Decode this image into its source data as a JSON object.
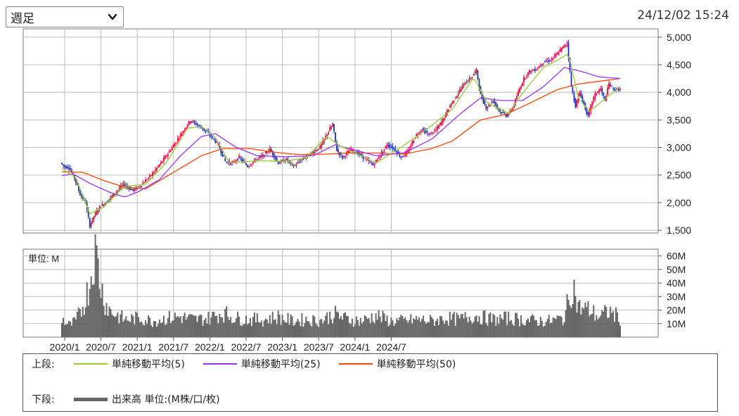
{
  "header": {
    "period_select": {
      "value": "週足"
    },
    "timestamp": "24/12/02 15:24"
  },
  "colors": {
    "candle_up": "#e8003a",
    "candle_down": "#1a2fb5",
    "ma5": "#9acd32",
    "ma25": "#9b30ff",
    "ma50": "#ff4500",
    "volume": "#666666",
    "grid": "#bdbdbd"
  },
  "legend": {
    "upper_label": "上段:",
    "lower_label": "下段:",
    "ma5_label": "単純移動平均(5)",
    "ma25_label": "単純移動平均(25)",
    "ma50_label": "単純移動平均(50)",
    "volume_label": "出来高 単位:(M株/口/枚)"
  },
  "chart_data": [
    {
      "type": "candlestick",
      "x_ticks": [
        "2020/1",
        "2020/7",
        "2021/1",
        "2021/7",
        "2022/1",
        "2022/7",
        "2023/1",
        "2023/7",
        "2024/1",
        "2024/7"
      ],
      "y_ticks": [
        "5,000",
        "4,500",
        "4,000",
        "3,500",
        "3,000",
        "2,500",
        "2,000",
        "1,500"
      ],
      "ylim": [
        1450,
        5150
      ],
      "price_keypoints": [
        [
          0,
          2720
        ],
        [
          3,
          2650
        ],
        [
          6,
          2640
        ],
        [
          10,
          2450
        ],
        [
          14,
          2150
        ],
        [
          18,
          2000
        ],
        [
          21,
          1580
        ],
        [
          24,
          1760
        ],
        [
          28,
          1920
        ],
        [
          33,
          2020
        ],
        [
          38,
          2150
        ],
        [
          45,
          2330
        ],
        [
          52,
          2220
        ],
        [
          58,
          2330
        ],
        [
          65,
          2500
        ],
        [
          72,
          2720
        ],
        [
          80,
          3000
        ],
        [
          88,
          3300
        ],
        [
          93,
          3490
        ],
        [
          98,
          3410
        ],
        [
          103,
          3320
        ],
        [
          108,
          3200
        ],
        [
          113,
          3050
        ],
        [
          118,
          2750
        ],
        [
          123,
          2710
        ],
        [
          128,
          2820
        ],
        [
          134,
          2660
        ],
        [
          140,
          2780
        ],
        [
          145,
          2850
        ],
        [
          150,
          2970
        ],
        [
          156,
          2720
        ],
        [
          162,
          2780
        ],
        [
          167,
          2660
        ],
        [
          172,
          2760
        ],
        [
          177,
          2860
        ],
        [
          181,
          2920
        ],
        [
          186,
          3000
        ],
        [
          191,
          3250
        ],
        [
          195,
          3420
        ],
        [
          198,
          2950
        ],
        [
          202,
          2820
        ],
        [
          208,
          2960
        ],
        [
          214,
          2880
        ],
        [
          219,
          2780
        ],
        [
          224,
          2680
        ],
        [
          229,
          2860
        ],
        [
          234,
          3050
        ],
        [
          239,
          2980
        ],
        [
          244,
          2820
        ],
        [
          249,
          2930
        ],
        [
          254,
          3200
        ],
        [
          259,
          3330
        ],
        [
          264,
          3230
        ],
        [
          269,
          3320
        ],
        [
          274,
          3500
        ],
        [
          279,
          3760
        ],
        [
          284,
          3950
        ],
        [
          289,
          4150
        ],
        [
          294,
          4260
        ],
        [
          298,
          4400
        ],
        [
          301,
          3950
        ],
        [
          305,
          3720
        ],
        [
          310,
          3850
        ],
        [
          315,
          3650
        ],
        [
          320,
          3580
        ],
        [
          324,
          3720
        ],
        [
          328,
          4000
        ],
        [
          332,
          4250
        ],
        [
          336,
          4380
        ],
        [
          341,
          4420
        ],
        [
          346,
          4550
        ],
        [
          351,
          4580
        ],
        [
          356,
          4700
        ],
        [
          360,
          4820
        ],
        [
          363,
          4900
        ],
        [
          366,
          4100
        ],
        [
          369,
          3750
        ],
        [
          372,
          4000
        ],
        [
          375,
          3780
        ],
        [
          378,
          3560
        ],
        [
          381,
          3850
        ],
        [
          384,
          4000
        ],
        [
          387,
          4060
        ],
        [
          390,
          3850
        ],
        [
          393,
          4160
        ],
        [
          396,
          4060
        ],
        [
          400,
          4050
        ]
      ],
      "ma5_keypoints": [
        [
          0,
          2620
        ],
        [
          10,
          2450
        ],
        [
          20,
          1800
        ],
        [
          30,
          1920
        ],
        [
          45,
          2300
        ],
        [
          60,
          2330
        ],
        [
          75,
          2730
        ],
        [
          90,
          3350
        ],
        [
          100,
          3380
        ],
        [
          110,
          3180
        ],
        [
          120,
          2720
        ],
        [
          140,
          2760
        ],
        [
          160,
          2750
        ],
        [
          175,
          2820
        ],
        [
          190,
          3200
        ],
        [
          198,
          3050
        ],
        [
          210,
          2900
        ],
        [
          225,
          2720
        ],
        [
          240,
          2950
        ],
        [
          260,
          3300
        ],
        [
          280,
          3700
        ],
        [
          295,
          4270
        ],
        [
          305,
          3800
        ],
        [
          320,
          3620
        ],
        [
          330,
          3980
        ],
        [
          345,
          4450
        ],
        [
          355,
          4580
        ],
        [
          363,
          4700
        ],
        [
          370,
          3900
        ],
        [
          378,
          3650
        ],
        [
          390,
          3900
        ],
        [
          400,
          4100
        ]
      ],
      "ma25_keypoints": [
        [
          0,
          2490
        ],
        [
          8,
          2520
        ],
        [
          20,
          2350
        ],
        [
          35,
          2180
        ],
        [
          45,
          2100
        ],
        [
          55,
          2200
        ],
        [
          70,
          2420
        ],
        [
          85,
          2850
        ],
        [
          100,
          3200
        ],
        [
          110,
          3250
        ],
        [
          125,
          3000
        ],
        [
          140,
          2850
        ],
        [
          160,
          2830
        ],
        [
          180,
          2850
        ],
        [
          196,
          3050
        ],
        [
          210,
          2950
        ],
        [
          225,
          2850
        ],
        [
          245,
          2900
        ],
        [
          265,
          3150
        ],
        [
          285,
          3600
        ],
        [
          300,
          3900
        ],
        [
          315,
          3850
        ],
        [
          330,
          3850
        ],
        [
          345,
          4100
        ],
        [
          360,
          4450
        ],
        [
          372,
          4380
        ],
        [
          385,
          4280
        ],
        [
          400,
          4250
        ]
      ],
      "ma50_keypoints": [
        [
          0,
          2560
        ],
        [
          15,
          2550
        ],
        [
          30,
          2400
        ],
        [
          45,
          2280
        ],
        [
          60,
          2250
        ],
        [
          80,
          2550
        ],
        [
          100,
          2850
        ],
        [
          115,
          2980
        ],
        [
          135,
          2980
        ],
        [
          150,
          2920
        ],
        [
          170,
          2870
        ],
        [
          190,
          2880
        ],
        [
          205,
          2900
        ],
        [
          225,
          2900
        ],
        [
          245,
          2880
        ],
        [
          265,
          2980
        ],
        [
          280,
          3120
        ],
        [
          300,
          3500
        ],
        [
          318,
          3600
        ],
        [
          335,
          3800
        ],
        [
          355,
          4050
        ],
        [
          370,
          4150
        ],
        [
          385,
          4200
        ],
        [
          400,
          4250
        ]
      ]
    },
    {
      "type": "bar",
      "series_label": "単位: M",
      "y_ticks": [
        "60M",
        "50M",
        "40M",
        "30M",
        "20M",
        "10M"
      ],
      "ylim": [
        0,
        65
      ],
      "volume_keypoints": [
        [
          0,
          14
        ],
        [
          3,
          10
        ],
        [
          6,
          9
        ],
        [
          10,
          12
        ],
        [
          14,
          20
        ],
        [
          18,
          32
        ],
        [
          21,
          46
        ],
        [
          23,
          64
        ],
        [
          25,
          58
        ],
        [
          28,
          38
        ],
        [
          31,
          26
        ],
        [
          35,
          19
        ],
        [
          40,
          16
        ],
        [
          45,
          13
        ],
        [
          55,
          14
        ],
        [
          65,
          12
        ],
        [
          75,
          14
        ],
        [
          85,
          15
        ],
        [
          95,
          13
        ],
        [
          105,
          14
        ],
        [
          115,
          18
        ],
        [
          125,
          14
        ],
        [
          135,
          13
        ],
        [
          145,
          13
        ],
        [
          155,
          15
        ],
        [
          165,
          12
        ],
        [
          175,
          13
        ],
        [
          185,
          12
        ],
        [
          195,
          17
        ],
        [
          205,
          13
        ],
        [
          215,
          12
        ],
        [
          225,
          16
        ],
        [
          235,
          12
        ],
        [
          245,
          12
        ],
        [
          255,
          13
        ],
        [
          265,
          12
        ],
        [
          275,
          14
        ],
        [
          285,
          13
        ],
        [
          295,
          16
        ],
        [
          300,
          15
        ],
        [
          310,
          13
        ],
        [
          320,
          14
        ],
        [
          330,
          13
        ],
        [
          340,
          12
        ],
        [
          350,
          12
        ],
        [
          360,
          14
        ],
        [
          366,
          40
        ],
        [
          370,
          22
        ],
        [
          378,
          20
        ],
        [
          385,
          15
        ],
        [
          392,
          19
        ],
        [
          400,
          14
        ]
      ]
    }
  ]
}
